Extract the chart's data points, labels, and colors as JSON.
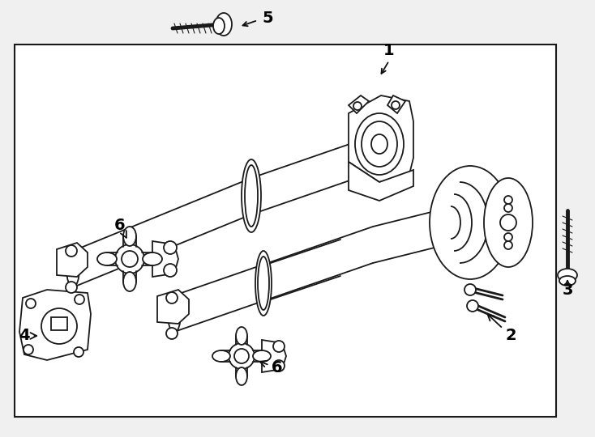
{
  "bg_color": "#f0f0f0",
  "line_color": "#1a1a1a",
  "box_color": "#1a1a1a",
  "label_color": "#000000",
  "label_fontsize": 14,
  "arrow_color": "#111111",
  "white": "#ffffff",
  "figsize": [
    7.34,
    5.4
  ],
  "dpi": 100
}
